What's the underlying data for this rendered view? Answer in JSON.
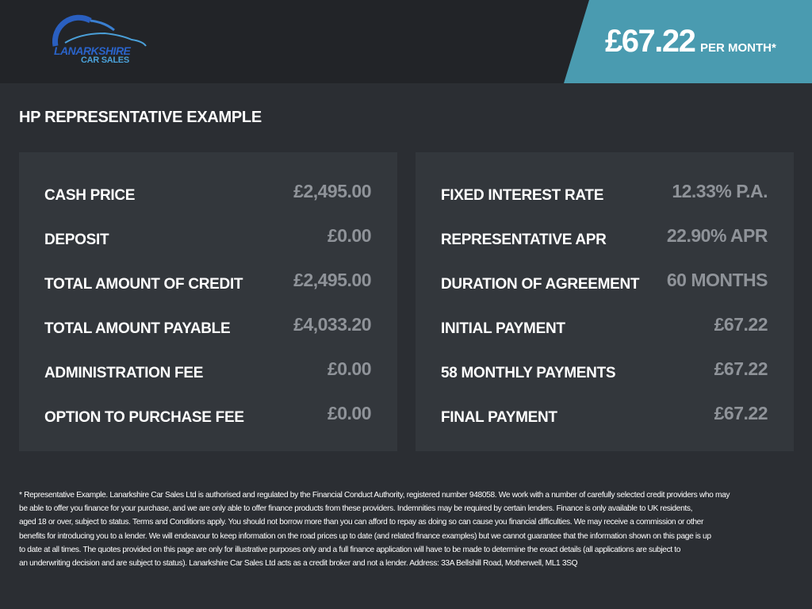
{
  "header": {
    "logo_text": "LANARKSHIRE CAR SALES",
    "logo_line1": "LANARKSHIRE",
    "logo_line2": "CAR SALES",
    "monthly_amount": "£67.22",
    "per_month_label": "PER MONTH*",
    "accent_color": "#4a9bb0"
  },
  "title": "HP REPRESENTATIVE EXAMPLE",
  "left_panel": [
    {
      "label": "CASH PRICE",
      "value": "£2,495.00"
    },
    {
      "label": "DEPOSIT",
      "value": "£0.00"
    },
    {
      "label": "TOTAL AMOUNT OF CREDIT",
      "value": "£2,495.00"
    },
    {
      "label": "TOTAL AMOUNT PAYABLE",
      "value": "£4,033.20"
    },
    {
      "label": "ADMINISTRATION FEE",
      "value": "£0.00"
    },
    {
      "label": "OPTION TO PURCHASE FEE",
      "value": "£0.00"
    }
  ],
  "right_panel": [
    {
      "label": "FIXED INTEREST RATE",
      "value": "12.33% P.A."
    },
    {
      "label": "REPRESENTATIVE APR",
      "value": "22.90% APR"
    },
    {
      "label": "DURATION OF AGREEMENT",
      "value": "60 MONTHS"
    },
    {
      "label": "INITIAL PAYMENT",
      "value": "£67.22"
    },
    {
      "label": "58 MONTHLY PAYMENTS",
      "value": "£67.22"
    },
    {
      "label": "FINAL PAYMENT",
      "value": "£67.22"
    }
  ],
  "disclaimer": "* Representative Example. Lanarkshire Car Sales Ltd is authorised and regulated by the Financial Conduct Authority, registered number 948058. We work with a number of carefully selected credit providers who may\nbe able to offer you finance for your purchase, and we are only able to offer finance products from these providers. Indemnities may be required by certain lenders. Finance is only available to UK residents,\naged 18 or over, subject to status. Terms and Conditions apply. You should not borrow more than you can afford to repay as doing so can cause you financial difficulties. We may receive a commission or other\nbenefits for introducing you to a lender. We will endeavour to keep information on the road prices up to date (and related finance examples) but we cannot guarantee that the information shown on this page is up\nto date at all times. The quotes provided on this page are only for illustrative purposes only and a full finance application will have to be made to determine the exact details (all applications are subject to\nan underwriting decision and are subject to status). Lanarkshire Car Sales Ltd acts as a credit broker and not a lender. Address: 33A Bellshill Road, Motherwell, ML1 3SQ"
}
